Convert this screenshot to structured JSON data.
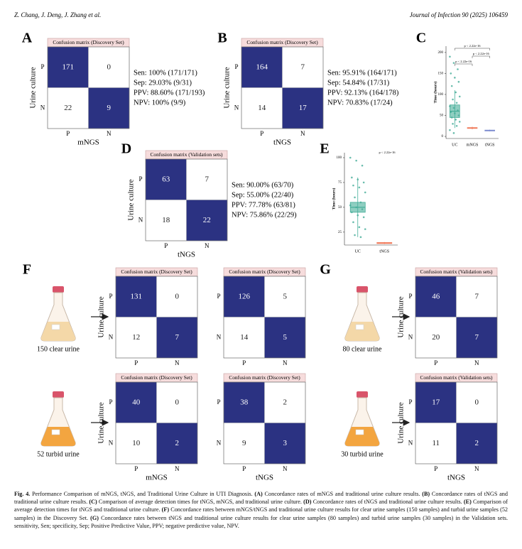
{
  "header": {
    "authors": "Z. Chang, J. Deng, J. Zhang et al.",
    "journal": "Journal of Infection 90 (2025) 106459"
  },
  "panels": [
    "A",
    "B",
    "C",
    "D",
    "E",
    "F",
    "G"
  ],
  "matrices": [
    {
      "title": "Confusion matrix (Discovery Set)",
      "y_label": "Urine culture",
      "row_labels": [
        "P",
        "N"
      ],
      "col_labels": [
        "P",
        "N"
      ],
      "x_label": "mNGS",
      "cells": [
        [
          171,
          0
        ],
        [
          22,
          9
        ]
      ],
      "stats": [
        "Sen:  100%  (171/171)",
        "Sep:  29.03%  (9/31)",
        "PPV:  88.60%  (171/193)",
        "NPV:  100%  (9/9)"
      ]
    },
    {
      "title": "Confusion matrix (Discovery Set)",
      "y_label": "Urine culture",
      "row_labels": [
        "P",
        "N"
      ],
      "col_labels": [
        "P",
        "N"
      ],
      "x_label": "tNGS",
      "cells": [
        [
          164,
          7
        ],
        [
          14,
          17
        ]
      ],
      "stats": [
        "Sen:  95.91%  (164/171)",
        "Sep:  54.84%  (17/31)",
        "PPV:  92.13%  (164/178)",
        "NPV:  70.83%  (17/24)"
      ]
    },
    {
      "title": "Confusion matrix (Validation sets)",
      "y_label": "Urine culture",
      "row_labels": [
        "P",
        "N"
      ],
      "col_labels": [
        "P",
        "N"
      ],
      "x_label": "tNGS",
      "cells": [
        [
          63,
          7
        ],
        [
          18,
          22
        ]
      ],
      "stats": [
        "Sen:  90.00%  (63/70)",
        "Sep:  55.00%  (22/40)",
        "PPV:  77.78%  (63/81)",
        "NPV:  75.86%  (22/29)"
      ]
    },
    {
      "title": "Confusion matrix (Discovery Set)",
      "y_label": "Urine culture",
      "row_labels": [
        "P",
        "N"
      ],
      "col_labels": [
        "P",
        "N"
      ],
      "cells": [
        [
          131,
          0
        ],
        [
          12,
          7
        ]
      ]
    },
    {
      "title": "Confusion matrix (Discovery Set)",
      "row_labels": [
        "P",
        "N"
      ],
      "col_labels": [
        "P",
        "N"
      ],
      "cells": [
        [
          126,
          5
        ],
        [
          14,
          5
        ]
      ]
    },
    {
      "title": "Confusion matrix (Discovery Set)",
      "y_label": "Urine culture",
      "row_labels": [
        "P",
        "N"
      ],
      "col_labels": [
        "P",
        "N"
      ],
      "x_label": "mNGS",
      "cells": [
        [
          40,
          0
        ],
        [
          10,
          2
        ]
      ]
    },
    {
      "title": "Confusion matrix (Discovery Set)",
      "row_labels": [
        "P",
        "N"
      ],
      "col_labels": [
        "P",
        "N"
      ],
      "x_label": "tNGS",
      "cells": [
        [
          38,
          2
        ],
        [
          9,
          3
        ]
      ]
    },
    {
      "title": "Confusion matrix (Validation sets)",
      "y_label": "Urine culture",
      "row_labels": [
        "P",
        "N"
      ],
      "col_labels": [
        "P",
        "N"
      ],
      "cells": [
        [
          46,
          7
        ],
        [
          20,
          7
        ]
      ]
    },
    {
      "title": "Confusion matrix (Validation sets)",
      "y_label": "Urine culture",
      "row_labels": [
        "P",
        "N"
      ],
      "col_labels": [
        "P",
        "N"
      ],
      "x_label": "tNGS",
      "cells": [
        [
          17,
          0
        ],
        [
          11,
          2
        ]
      ]
    }
  ],
  "flask_labels": [
    "150 clear urine",
    "52 turbid urine",
    "80 clear urine",
    "30 turbid urine"
  ],
  "chart_data": [
    {
      "type": "box",
      "y_label": "Time (hours)",
      "categories": [
        "UC",
        "mNGS",
        "tNGS"
      ],
      "ylim": [
        -5,
        215
      ],
      "yticks": [
        0,
        50,
        100,
        150,
        200
      ],
      "annotations": [
        "p < 2.22e-16",
        "p < 2.22e-16",
        "p < 2.22e-16"
      ],
      "boxes": [
        {
          "color": "#45ad98",
          "whisker_low": 20,
          "q1": 45,
          "median": 60,
          "q3": 75,
          "whisker_high": 110,
          "points": [
            190,
            175,
            160,
            150,
            140,
            130,
            120,
            105,
            95,
            88,
            80,
            72,
            68,
            62,
            58,
            55,
            50,
            45,
            40,
            35,
            30,
            25,
            15,
            8
          ]
        },
        {
          "color": "#f07a5a",
          "whisker_low": 17,
          "q1": 19,
          "median": 20,
          "q3": 21,
          "whisker_high": 23,
          "points": []
        },
        {
          "color": "#7b8bcf",
          "whisker_low": 12,
          "q1": 13,
          "median": 14,
          "q3": 15,
          "whisker_high": 16,
          "points": []
        }
      ]
    },
    {
      "type": "box",
      "y_label": "Time (hours)",
      "categories": [
        "UC",
        "tNGS"
      ],
      "ylim": [
        12,
        105
      ],
      "yticks": [
        25,
        50,
        75,
        100
      ],
      "annotations": [
        "p < 2.22e-16"
      ],
      "boxes": [
        {
          "color": "#45ad98",
          "whisker_low": 20,
          "q1": 45,
          "median": 50,
          "q3": 55,
          "whisker_high": 80,
          "points": [
            100,
            97,
            92,
            80,
            78,
            75,
            72,
            70,
            65,
            60,
            55,
            52,
            50,
            48,
            45,
            42,
            40,
            35,
            30,
            28,
            22,
            20
          ]
        },
        {
          "color": "#f07a5a",
          "whisker_low": 13,
          "q1": 13.5,
          "median": 14,
          "q3": 14.5,
          "whisker_high": 15,
          "points": []
        }
      ]
    }
  ],
  "caption": {
    "label": "Fig. 4.",
    "intro": " Performance Comparison of mNGS, tNGS, and Traditional Urine Culture in UTI Diagnosis. ",
    "parts": [
      {
        "tag": "(A)",
        "text": " Concordance rates of mNGS and traditional urine culture results. "
      },
      {
        "tag": "(B)",
        "text": " Concordance rates of tNGS and traditional urine culture results. "
      },
      {
        "tag": "(C)",
        "text": " Comparison of average detection times for tNGS, mNGS, and traditional urine culture. "
      },
      {
        "tag": "(D)",
        "text": " Concordance rates of tNGS and traditional urine culture results. "
      },
      {
        "tag": "(E)",
        "text": " Comparison of average detection times for tNGS and traditional urine culture. "
      },
      {
        "tag": "(F)",
        "text": " Concordance rates between mNGS/tNGS and traditional urine culture results for clear urine samples (150 samples) and turbid urine samples (52 samples) in the Discovery Set. "
      },
      {
        "tag": "(G)",
        "text": " Concordance rates between tNGS and traditional urine culture results for clear urine samples (80 samples) and turbid urine samples (30 samples) in the Validation sets. sensitivity, Sen; specificity, Sep; Positive Predictive Value, PPV; negative predictive value, NPV."
      }
    ]
  }
}
